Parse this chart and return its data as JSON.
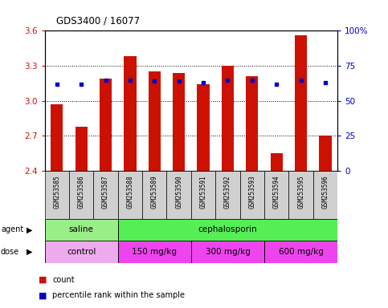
{
  "title": "GDS3400 / 16077",
  "samples": [
    "GSM253585",
    "GSM253586",
    "GSM253587",
    "GSM253588",
    "GSM253589",
    "GSM253590",
    "GSM253591",
    "GSM253592",
    "GSM253593",
    "GSM253594",
    "GSM253595",
    "GSM253596"
  ],
  "count_values": [
    2.97,
    2.78,
    3.19,
    3.38,
    3.25,
    3.24,
    3.14,
    3.3,
    3.21,
    2.55,
    3.56,
    2.7
  ],
  "percentile_values": [
    62,
    62,
    65,
    65,
    64,
    64,
    63,
    65,
    65,
    62,
    65,
    63
  ],
  "ylim_left": [
    2.4,
    3.6
  ],
  "ylim_right": [
    0,
    100
  ],
  "yticks_left": [
    2.4,
    2.7,
    3.0,
    3.3,
    3.6
  ],
  "ytick_labels_left": [
    "2.4",
    "2.7",
    "3.0",
    "3.3",
    "3.6"
  ],
  "yticks_right": [
    0,
    25,
    50,
    75,
    100
  ],
  "ytick_labels_right": [
    "0",
    "25",
    "50",
    "75",
    "100%"
  ],
  "bar_color": "#cc1100",
  "dot_color": "#0000cc",
  "agent_groups": [
    {
      "label": "saline",
      "start": 0,
      "end": 3,
      "color": "#99ee88"
    },
    {
      "label": "cephalosporin",
      "start": 3,
      "end": 12,
      "color": "#55ee55"
    }
  ],
  "dose_groups": [
    {
      "label": "control",
      "start": 0,
      "end": 3,
      "color": "#eeaaee"
    },
    {
      "label": "150 mg/kg",
      "start": 3,
      "end": 6,
      "color": "#ee44ee"
    },
    {
      "label": "300 mg/kg",
      "start": 6,
      "end": 9,
      "color": "#ee44ee"
    },
    {
      "label": "600 mg/kg",
      "start": 9,
      "end": 12,
      "color": "#ee44ee"
    }
  ],
  "bar_width": 0.5,
  "background_color": "#ffffff"
}
